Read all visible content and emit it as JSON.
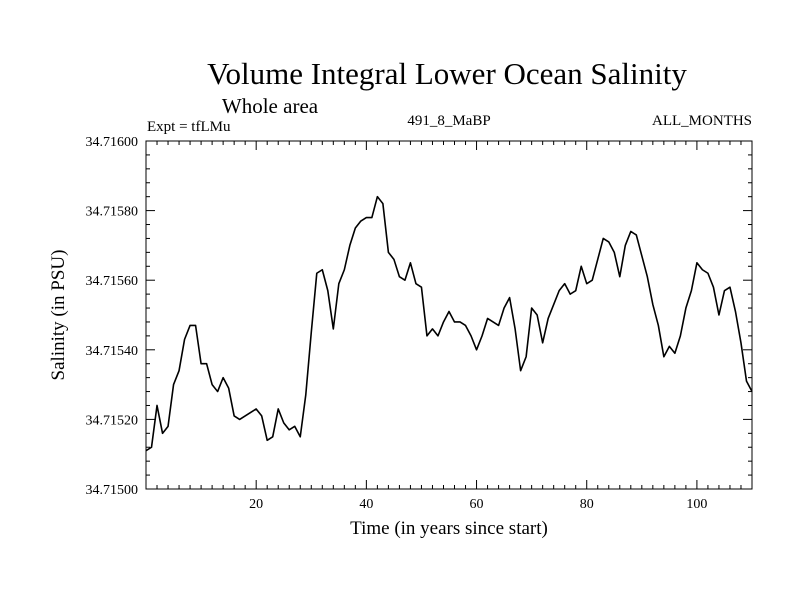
{
  "chart_data": {
    "type": "line",
    "title": "Volume Integral Lower Ocean Salinity",
    "subtitle": "Whole area",
    "experiment": "Expt = tfLMu",
    "run_id": "491_8_MaBP",
    "period": "ALL_MONTHS",
    "xlabel": "Time (in years since start)",
    "ylabel": "Salinity (in PSU)",
    "xlim": [
      0,
      110
    ],
    "ylim": [
      34.715,
      34.716
    ],
    "x_ticks": [
      20,
      40,
      60,
      80,
      100
    ],
    "x_tick_labels": [
      "20",
      "40",
      "60",
      "80",
      "100"
    ],
    "y_ticks": [
      34.715,
      34.7152,
      34.7154,
      34.7156,
      34.7158,
      34.716
    ],
    "y_tick_labels": [
      "34.71500",
      "34.71520",
      "34.71540",
      "34.71560",
      "34.71580",
      "34.71600"
    ],
    "grid": false,
    "series": [
      {
        "name": "Salinity",
        "color": "#000000",
        "x": [
          0,
          1,
          2,
          3,
          4,
          5,
          6,
          7,
          8,
          9,
          10,
          11,
          12,
          13,
          14,
          15,
          16,
          17,
          18,
          19,
          20,
          21,
          22,
          23,
          24,
          25,
          26,
          27,
          28,
          29,
          30,
          31,
          32,
          33,
          34,
          35,
          36,
          37,
          38,
          39,
          40,
          41,
          42,
          43,
          44,
          45,
          46,
          47,
          48,
          49,
          50,
          51,
          52,
          53,
          54,
          55,
          56,
          57,
          58,
          59,
          60,
          61,
          62,
          63,
          64,
          65,
          66,
          67,
          68,
          69,
          70,
          71,
          72,
          73,
          74,
          75,
          76,
          77,
          78,
          79,
          80,
          81,
          82,
          83,
          84,
          85,
          86,
          87,
          88,
          89,
          90,
          91,
          92,
          93,
          94,
          95,
          96,
          97,
          98,
          99,
          100,
          101,
          102,
          103,
          104,
          105,
          106,
          107,
          108,
          109,
          110
        ],
        "values": [
          34.71511,
          34.71512,
          34.71524,
          34.71516,
          34.71518,
          34.7153,
          34.71534,
          34.71543,
          34.71547,
          34.71547,
          34.71536,
          34.71536,
          34.7153,
          34.71528,
          34.71532,
          34.71529,
          34.71521,
          34.7152,
          34.71521,
          34.71522,
          34.71523,
          34.71521,
          34.71514,
          34.71515,
          34.71523,
          34.71519,
          34.71517,
          34.71518,
          34.71515,
          34.71527,
          34.71545,
          34.71562,
          34.71563,
          34.71557,
          34.71546,
          34.71559,
          34.71563,
          34.7157,
          34.71575,
          34.71577,
          34.71578,
          34.71578,
          34.71584,
          34.71582,
          34.71568,
          34.71566,
          34.71561,
          34.7156,
          34.71565,
          34.71559,
          34.71558,
          34.71544,
          34.71546,
          34.71544,
          34.71548,
          34.71551,
          34.71548,
          34.71548,
          34.71547,
          34.71544,
          34.7154,
          34.71544,
          34.71549,
          34.71548,
          34.71547,
          34.71552,
          34.71555,
          34.71546,
          34.71534,
          34.71538,
          34.71552,
          34.7155,
          34.71542,
          34.71549,
          34.71553,
          34.71557,
          34.71559,
          34.71556,
          34.71557,
          34.71564,
          34.71559,
          34.7156,
          34.71566,
          34.71572,
          34.71571,
          34.71568,
          34.71561,
          34.7157,
          34.71574,
          34.71573,
          34.71567,
          34.71561,
          34.71553,
          34.71547,
          34.71538,
          34.71541,
          34.71539,
          34.71544,
          34.71552,
          34.71557,
          34.71565,
          34.71563,
          34.71562,
          34.71558,
          34.7155,
          34.71557,
          34.71558,
          34.71551,
          34.71542,
          34.71531,
          34.71528
        ]
      }
    ]
  }
}
